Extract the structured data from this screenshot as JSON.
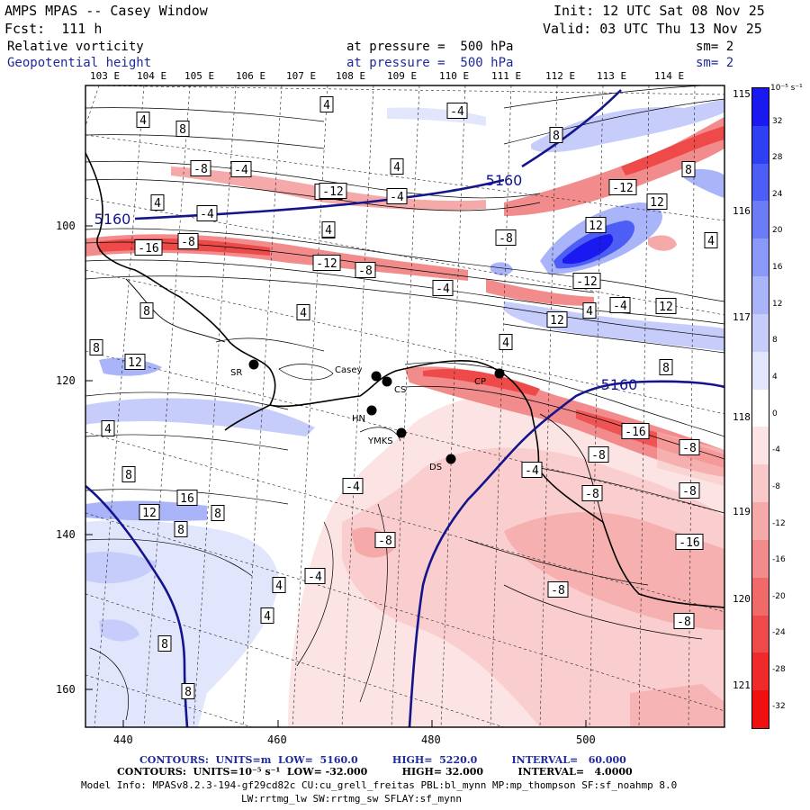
{
  "header": {
    "title": "AMPS MPAS -- Casey Window",
    "init": "Init: 12 UTC Sat 08 Nov 25",
    "fcst": "Fcst:  111 h",
    "valid": "Valid: 03 UTC Thu 13 Nov 25",
    "field1": {
      "name": "Relative vorticity",
      "pressure": "at pressure =  500 hPa",
      "sm": "sm= 2"
    },
    "field2": {
      "name": "Geopotential height",
      "pressure": "at pressure =  500 hPa",
      "sm": "sm= 2"
    }
  },
  "lon_labels": [
    "103 E",
    "104 E",
    "105 E",
    "106 E",
    "107 E",
    "108 E",
    "109 E",
    "110 E",
    "111 E",
    "112 E",
    "113 E",
    "114 E"
  ],
  "right_lon_labels": [
    "115 E",
    "116 E",
    "117 E",
    "118 E",
    "119 E",
    "120 E",
    "121 E"
  ],
  "x_axis": [
    "440",
    "460",
    "480",
    "500"
  ],
  "y_axis": [
    "100",
    "120",
    "140",
    "160"
  ],
  "colorbar": {
    "unit": "10⁻⁵ s⁻¹",
    "ticks": [
      "32",
      "28",
      "24",
      "20",
      "16",
      "12",
      "8",
      "4",
      "0",
      "-4",
      "-8",
      "-12",
      "-16",
      "-20",
      "-24",
      "-28",
      "-32"
    ],
    "colors": [
      "#1a1af0",
      "#2f3ff2",
      "#4c5ef5",
      "#6b7cf6",
      "#8a98f7",
      "#a9b4f9",
      "#c6cdfb",
      "#e2e6fd",
      "#ffffff",
      "#fde4e4",
      "#f9c8c8",
      "#f5a9a9",
      "#f28c8c",
      "#f06a6a",
      "#ee4a4a",
      "#ef2a2a",
      "#f01010"
    ]
  },
  "stations": [
    {
      "name": "SR"
    },
    {
      "name": "Casey"
    },
    {
      "name": "CS"
    },
    {
      "name": "HN"
    },
    {
      "name": "YMKS"
    },
    {
      "name": "CP"
    },
    {
      "name": "DS"
    }
  ],
  "height_contour_labels": [
    "5160",
    "5160",
    "5160"
  ],
  "vorticity_labels": [
    "4",
    "8",
    "-8",
    "-4",
    "4",
    "-4",
    "4",
    "8",
    "-12",
    "8",
    "-16",
    "-8",
    "-12",
    "-8",
    "4",
    "-4",
    "4",
    "12",
    "-12",
    "4",
    "-8",
    "-4",
    "8",
    "12",
    "4",
    "12",
    "-12",
    "12",
    "-16",
    "-8",
    "8",
    "-4",
    "16",
    "12",
    "8",
    "-4",
    "-8",
    "8",
    "-8",
    "-4",
    "-8",
    "-16",
    "4",
    "4",
    "-4",
    "-8",
    "8",
    "-8",
    "8",
    "4",
    "4",
    "-4",
    "-12",
    "-8",
    "8",
    "8",
    "4",
    "8",
    "12",
    "4"
  ],
  "footer": {
    "line1": "CONTOURS:  UNITS=m  LOW=  5160.0          HIGH=  5220.0          INTERVAL=   60.000",
    "line2": "CONTOURS:  UNITS=10⁻⁵ s⁻¹  LOW= -32.000          HIGH= 32.000          INTERVAL=   4.0000",
    "line3": "Model Info: MPASv8.2.3-194-gf29cd82c CU:cu_grell_freitas PBL:bl_mynn MP:mp_thompson SF:sf_noahmp 8.0",
    "line4": "LW:rrtmg_lw SW:rrtmg_sw SFLAY:sf_mynn"
  }
}
